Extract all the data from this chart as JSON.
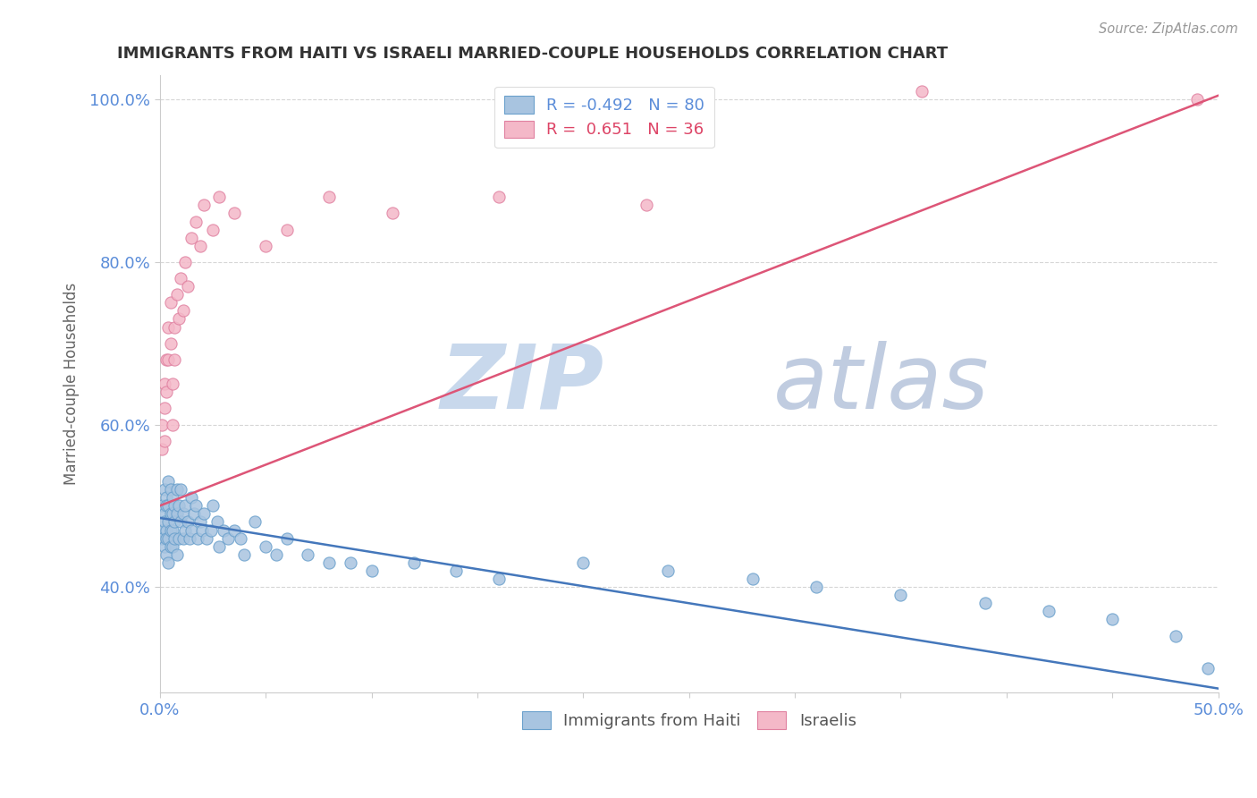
{
  "title": "IMMIGRANTS FROM HAITI VS ISRAELI MARRIED-COUPLE HOUSEHOLDS CORRELATION CHART",
  "source": "Source: ZipAtlas.com",
  "ylabel": "Married-couple Households",
  "xlim": [
    0.0,
    0.5
  ],
  "ylim": [
    0.27,
    1.03
  ],
  "ytick_positions": [
    0.4,
    0.6,
    0.8,
    1.0
  ],
  "yticklabels": [
    "40.0%",
    "60.0%",
    "80.0%",
    "100.0%"
  ],
  "haiti_color": "#a8c4e0",
  "haiti_edge_color": "#6aa0cc",
  "israel_color": "#f4b8c8",
  "israel_edge_color": "#e080a0",
  "haiti_line_color": "#4477bb",
  "israel_line_color": "#dd5577",
  "haiti_R": -0.492,
  "haiti_N": 80,
  "israel_R": 0.651,
  "israel_N": 36,
  "watermark_zip": "ZIP",
  "watermark_atlas": "atlas",
  "watermark_color_zip": "#c8d8ec",
  "watermark_color_atlas": "#c0cce0",
  "background_color": "#ffffff",
  "grid_color": "#cccccc",
  "title_color": "#333333",
  "axis_label_color": "#5b8dd9",
  "tick_label_color": "#5b8dd9",
  "legend_border_color": "#dddddd",
  "haiti_line_x0": 0.0,
  "haiti_line_y0": 0.485,
  "haiti_line_x1": 0.5,
  "haiti_line_y1": 0.275,
  "israel_line_x0": 0.0,
  "israel_line_y0": 0.5,
  "israel_line_x1": 0.5,
  "israel_line_y1": 1.005,
  "haiti_scatter_x": [
    0.001,
    0.001,
    0.001,
    0.002,
    0.002,
    0.002,
    0.002,
    0.003,
    0.003,
    0.003,
    0.003,
    0.003,
    0.004,
    0.004,
    0.004,
    0.004,
    0.004,
    0.005,
    0.005,
    0.005,
    0.005,
    0.006,
    0.006,
    0.006,
    0.006,
    0.007,
    0.007,
    0.007,
    0.008,
    0.008,
    0.008,
    0.009,
    0.009,
    0.01,
    0.01,
    0.011,
    0.011,
    0.012,
    0.012,
    0.013,
    0.014,
    0.015,
    0.015,
    0.016,
    0.017,
    0.018,
    0.019,
    0.02,
    0.021,
    0.022,
    0.024,
    0.025,
    0.027,
    0.028,
    0.03,
    0.032,
    0.035,
    0.038,
    0.04,
    0.045,
    0.05,
    0.055,
    0.06,
    0.07,
    0.08,
    0.09,
    0.1,
    0.12,
    0.14,
    0.16,
    0.2,
    0.24,
    0.28,
    0.31,
    0.35,
    0.39,
    0.42,
    0.45,
    0.48,
    0.495
  ],
  "haiti_scatter_y": [
    0.5,
    0.47,
    0.46,
    0.52,
    0.49,
    0.48,
    0.45,
    0.51,
    0.5,
    0.47,
    0.46,
    0.44,
    0.53,
    0.5,
    0.48,
    0.46,
    0.43,
    0.52,
    0.49,
    0.47,
    0.45,
    0.51,
    0.49,
    0.47,
    0.45,
    0.5,
    0.48,
    0.46,
    0.52,
    0.49,
    0.44,
    0.5,
    0.46,
    0.52,
    0.48,
    0.49,
    0.46,
    0.5,
    0.47,
    0.48,
    0.46,
    0.51,
    0.47,
    0.49,
    0.5,
    0.46,
    0.48,
    0.47,
    0.49,
    0.46,
    0.47,
    0.5,
    0.48,
    0.45,
    0.47,
    0.46,
    0.47,
    0.46,
    0.44,
    0.48,
    0.45,
    0.44,
    0.46,
    0.44,
    0.43,
    0.43,
    0.42,
    0.43,
    0.42,
    0.41,
    0.43,
    0.42,
    0.41,
    0.4,
    0.39,
    0.38,
    0.37,
    0.36,
    0.34,
    0.3
  ],
  "israel_scatter_x": [
    0.001,
    0.001,
    0.002,
    0.002,
    0.002,
    0.003,
    0.003,
    0.004,
    0.004,
    0.005,
    0.005,
    0.006,
    0.006,
    0.007,
    0.007,
    0.008,
    0.009,
    0.01,
    0.011,
    0.012,
    0.013,
    0.015,
    0.017,
    0.019,
    0.021,
    0.025,
    0.028,
    0.035,
    0.05,
    0.06,
    0.08,
    0.11,
    0.16,
    0.23,
    0.36,
    0.49
  ],
  "israel_scatter_y": [
    0.6,
    0.57,
    0.65,
    0.62,
    0.58,
    0.68,
    0.64,
    0.72,
    0.68,
    0.75,
    0.7,
    0.65,
    0.6,
    0.72,
    0.68,
    0.76,
    0.73,
    0.78,
    0.74,
    0.8,
    0.77,
    0.83,
    0.85,
    0.82,
    0.87,
    0.84,
    0.88,
    0.86,
    0.82,
    0.84,
    0.88,
    0.86,
    0.88,
    0.87,
    1.01,
    1.0
  ]
}
